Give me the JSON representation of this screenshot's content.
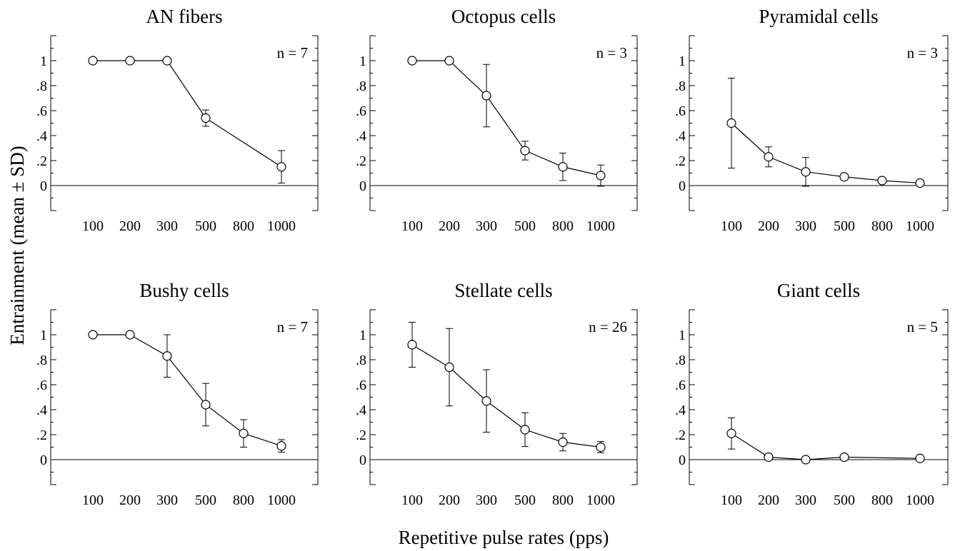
{
  "figure": {
    "ylabel": "Entrainment (mean ± SD)",
    "xlabel": "Repetitive pulse rates (pps)"
  },
  "chart_data": [
    {
      "type": "line",
      "title": "AN fibers",
      "annotation": "n = 7",
      "categories": [
        "100",
        "200",
        "300",
        "500",
        "800",
        "1000"
      ],
      "x": [
        "100",
        "200",
        "300",
        "500",
        "1000"
      ],
      "values": [
        1.0,
        1.0,
        1.0,
        0.54,
        0.15
      ],
      "error": [
        0,
        0,
        0,
        0.065,
        0.13
      ],
      "yticks": [
        "0",
        ".2",
        ".4",
        ".6",
        ".8",
        "1"
      ],
      "ylim": [
        -0.2,
        1.2
      ],
      "grid": false
    },
    {
      "type": "line",
      "title": "Octopus cells",
      "annotation": "n = 3",
      "categories": [
        "100",
        "200",
        "300",
        "500",
        "800",
        "1000"
      ],
      "x": [
        "100",
        "200",
        "300",
        "500",
        "800",
        "1000"
      ],
      "values": [
        1.0,
        1.0,
        0.72,
        0.28,
        0.15,
        0.08
      ],
      "error": [
        0,
        0,
        0.25,
        0.075,
        0.11,
        0.085
      ],
      "yticks": [
        "0",
        ".2",
        ".4",
        ".6",
        ".8",
        "1"
      ],
      "ylim": [
        -0.2,
        1.2
      ],
      "grid": false
    },
    {
      "type": "line",
      "title": "Pyramidal cells",
      "annotation": "n = 3",
      "categories": [
        "100",
        "200",
        "300",
        "500",
        "800",
        "1000"
      ],
      "x": [
        "100",
        "200",
        "300",
        "500",
        "800",
        "1000"
      ],
      "values": [
        0.5,
        0.23,
        0.11,
        0.07,
        0.04,
        0.02
      ],
      "error": [
        0.36,
        0.08,
        0.115,
        0,
        0,
        0
      ],
      "yticks": [
        "0",
        ".2",
        ".4",
        ".6",
        ".8",
        "1"
      ],
      "ylim": [
        -0.2,
        1.2
      ],
      "grid": false
    },
    {
      "type": "line",
      "title": "Bushy cells",
      "annotation": "n = 7",
      "categories": [
        "100",
        "200",
        "300",
        "500",
        "800",
        "1000"
      ],
      "x": [
        "100",
        "200",
        "300",
        "500",
        "800",
        "1000"
      ],
      "values": [
        1.0,
        1.0,
        0.83,
        0.44,
        0.21,
        0.11
      ],
      "error": [
        0,
        0,
        0.17,
        0.17,
        0.11,
        0.05
      ],
      "yticks": [
        "0",
        ".2",
        ".4",
        ".6",
        ".8",
        "1"
      ],
      "ylim": [
        -0.2,
        1.2
      ],
      "grid": false
    },
    {
      "type": "line",
      "title": "Stellate cells",
      "annotation": "n = 26",
      "categories": [
        "100",
        "200",
        "300",
        "500",
        "800",
        "1000"
      ],
      "x": [
        "100",
        "200",
        "300",
        "500",
        "800",
        "1000"
      ],
      "values": [
        0.92,
        0.74,
        0.47,
        0.24,
        0.14,
        0.1
      ],
      "error": [
        0.18,
        0.31,
        0.25,
        0.135,
        0.07,
        0.045
      ],
      "yticks": [
        "0",
        ".2",
        ".4",
        ".6",
        ".8",
        "1"
      ],
      "ylim": [
        -0.2,
        1.2
      ],
      "grid": false
    },
    {
      "type": "line",
      "title": "Giant cells",
      "annotation": "n = 5",
      "categories": [
        "100",
        "200",
        "300",
        "500",
        "800",
        "1000"
      ],
      "x": [
        "100",
        "200",
        "300",
        "500",
        "1000"
      ],
      "values": [
        0.21,
        0.02,
        0.0,
        0.02,
        0.01
      ],
      "error": [
        0.125,
        0,
        0,
        0,
        0
      ],
      "yticks": [
        "0",
        ".2",
        ".4",
        ".6",
        ".8",
        "1"
      ],
      "ylim": [
        -0.2,
        1.2
      ],
      "grid": false
    }
  ]
}
